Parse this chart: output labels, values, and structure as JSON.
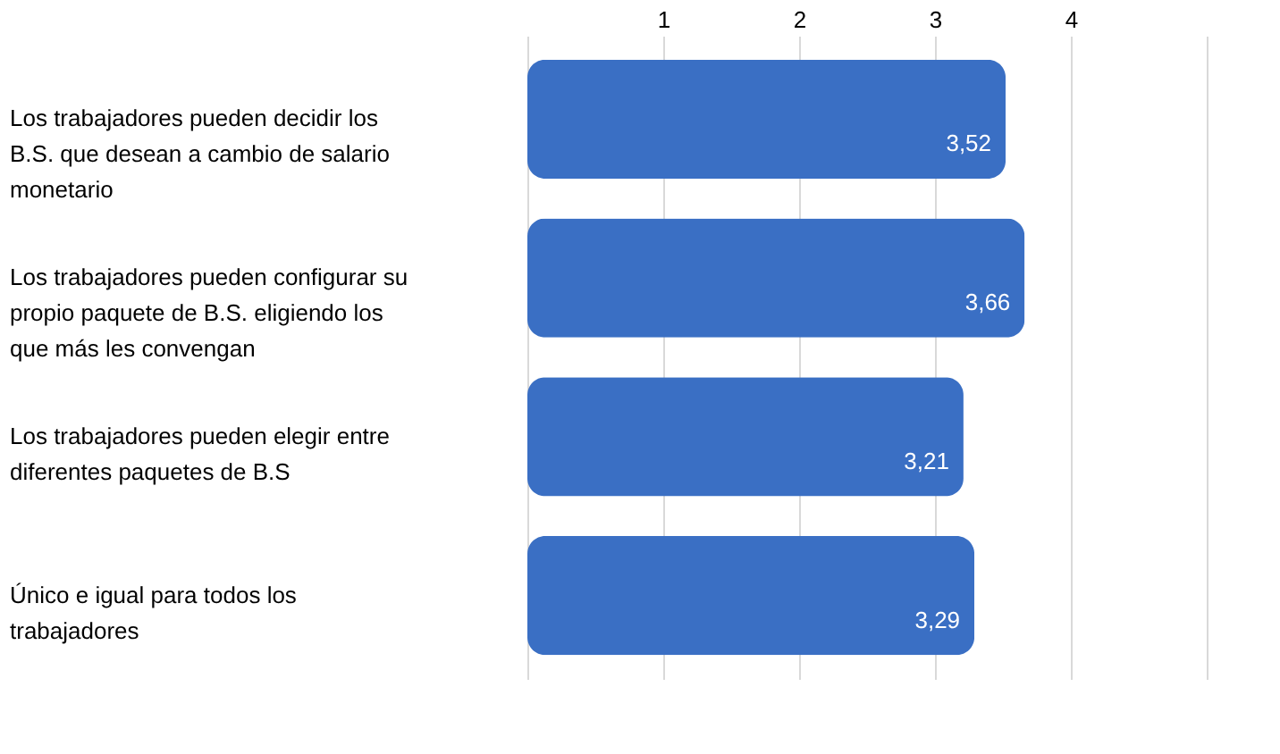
{
  "chart_data": {
    "type": "bar",
    "orientation": "horizontal",
    "categories": [
      "Los trabajadores pueden decidir los B.S. que desean a cambio de salario monetario",
      "Los trabajadores pueden configurar su propio paquete de B.S. eligiendo los que más les convengan",
      "Los trabajadores pueden elegir entre diferentes paquetes de B.S",
      "Único e igual para todos los trabajadores"
    ],
    "values": [
      3.52,
      3.66,
      3.21,
      3.29
    ],
    "value_labels": [
      "3,52",
      "3,66",
      "3,21",
      "3,29"
    ],
    "color": "#3a6fc4",
    "xlim": [
      0,
      5
    ],
    "xticks": [
      {
        "value": 0,
        "label": null
      },
      1,
      2,
      3,
      4,
      {
        "value": 5,
        "label": null
      }
    ],
    "grid": "x"
  }
}
